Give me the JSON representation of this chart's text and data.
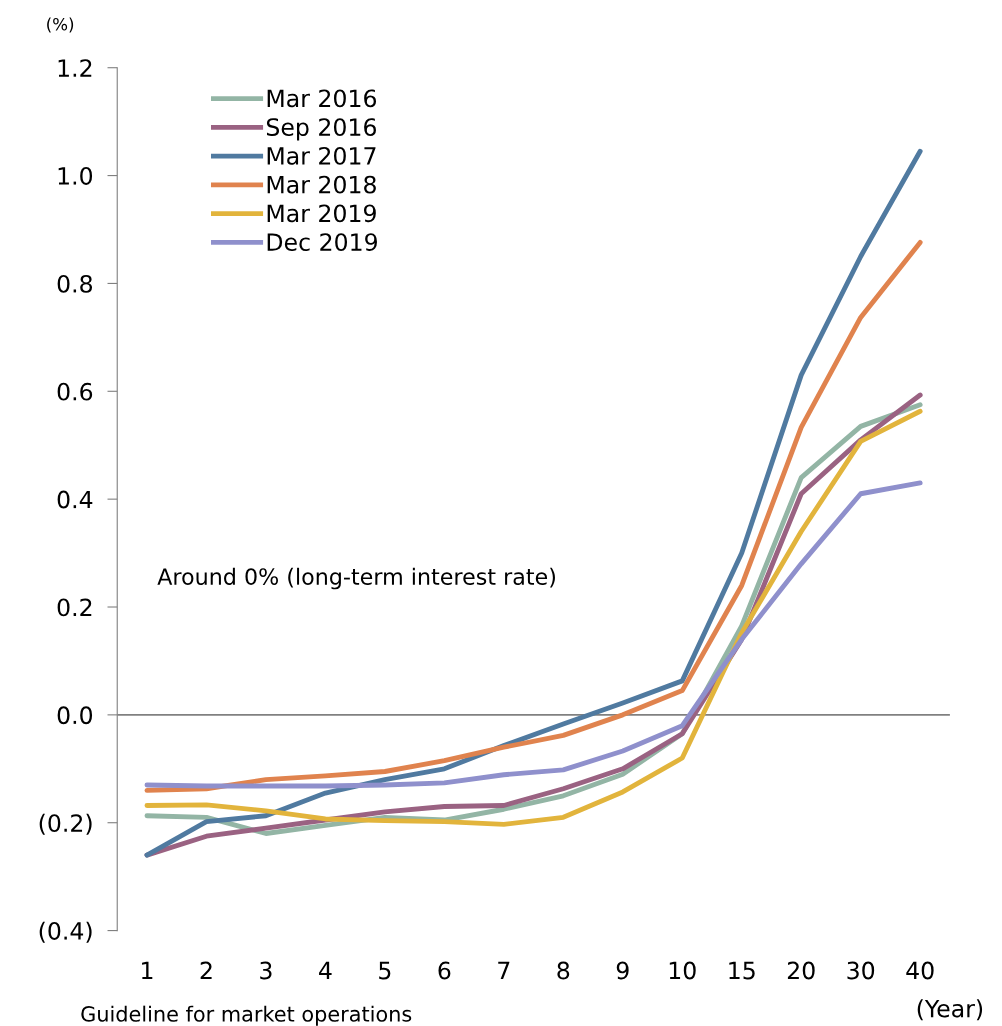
{
  "chart_data": {
    "type": "line",
    "ylabel": "(%)",
    "xlabel": "(Year)",
    "categories": [
      "1",
      "2",
      "3",
      "4",
      "5",
      "6",
      "7",
      "8",
      "9",
      "10",
      "15",
      "20",
      "30",
      "40"
    ],
    "series": [
      {
        "name": "Mar 2016",
        "color": "#93b5a5",
        "values": [
          -0.187,
          -0.19,
          -0.22,
          -0.205,
          -0.19,
          -0.195,
          -0.175,
          -0.15,
          -0.11,
          -0.035,
          0.165,
          0.44,
          0.535,
          0.575
        ]
      },
      {
        "name": "Sep 2016",
        "color": "#9a6282",
        "values": [
          -0.26,
          -0.225,
          -0.21,
          -0.195,
          -0.18,
          -0.17,
          -0.168,
          -0.137,
          -0.1,
          -0.035,
          0.14,
          0.41,
          0.51,
          0.593
        ]
      },
      {
        "name": "Mar 2017",
        "color": "#507aa0",
        "values": [
          -0.26,
          -0.198,
          -0.187,
          -0.145,
          -0.12,
          -0.1,
          -0.057,
          -0.017,
          0.022,
          0.063,
          0.3,
          0.63,
          0.85,
          1.045
        ]
      },
      {
        "name": "Mar 2018",
        "color": "#e0834e",
        "values": [
          -0.14,
          -0.137,
          -0.12,
          -0.113,
          -0.105,
          -0.085,
          -0.06,
          -0.038,
          0.0,
          0.045,
          0.24,
          0.533,
          0.737,
          0.876
        ]
      },
      {
        "name": "Mar 2019",
        "color": "#e2b43c",
        "values": [
          -0.168,
          -0.167,
          -0.178,
          -0.193,
          -0.196,
          -0.198,
          -0.203,
          -0.19,
          -0.143,
          -0.08,
          0.152,
          0.34,
          0.507,
          0.563
        ]
      },
      {
        "name": "Dec 2019",
        "color": "#8f90cc",
        "values": [
          -0.13,
          -0.132,
          -0.132,
          -0.132,
          -0.13,
          -0.126,
          -0.111,
          -0.102,
          -0.067,
          -0.02,
          0.14,
          0.28,
          0.41,
          0.43
        ]
      }
    ],
    "ylim": [
      -0.4,
      1.2
    ],
    "yticks": [
      {
        "value": -0.4,
        "label": "(0.4)"
      },
      {
        "value": -0.2,
        "label": "(0.2)"
      },
      {
        "value": 0.0,
        "label": "0.0"
      },
      {
        "value": 0.2,
        "label": "0.2"
      },
      {
        "value": 0.4,
        "label": "0.4"
      },
      {
        "value": 0.6,
        "label": "0.6"
      },
      {
        "value": 0.8,
        "label": "0.8"
      },
      {
        "value": 1.0,
        "label": "1.0"
      },
      {
        "value": 1.2,
        "label": "1.2"
      }
    ],
    "ref_lines": [
      {
        "axis": "y",
        "value": 0.0,
        "color": "#808080"
      }
    ],
    "annotations": [
      "Around 0% (long-term interest rate)",
      "Guideline for market operations"
    ],
    "grid": false,
    "legend": "top left",
    "marker": "none",
    "line_style": "solid"
  }
}
